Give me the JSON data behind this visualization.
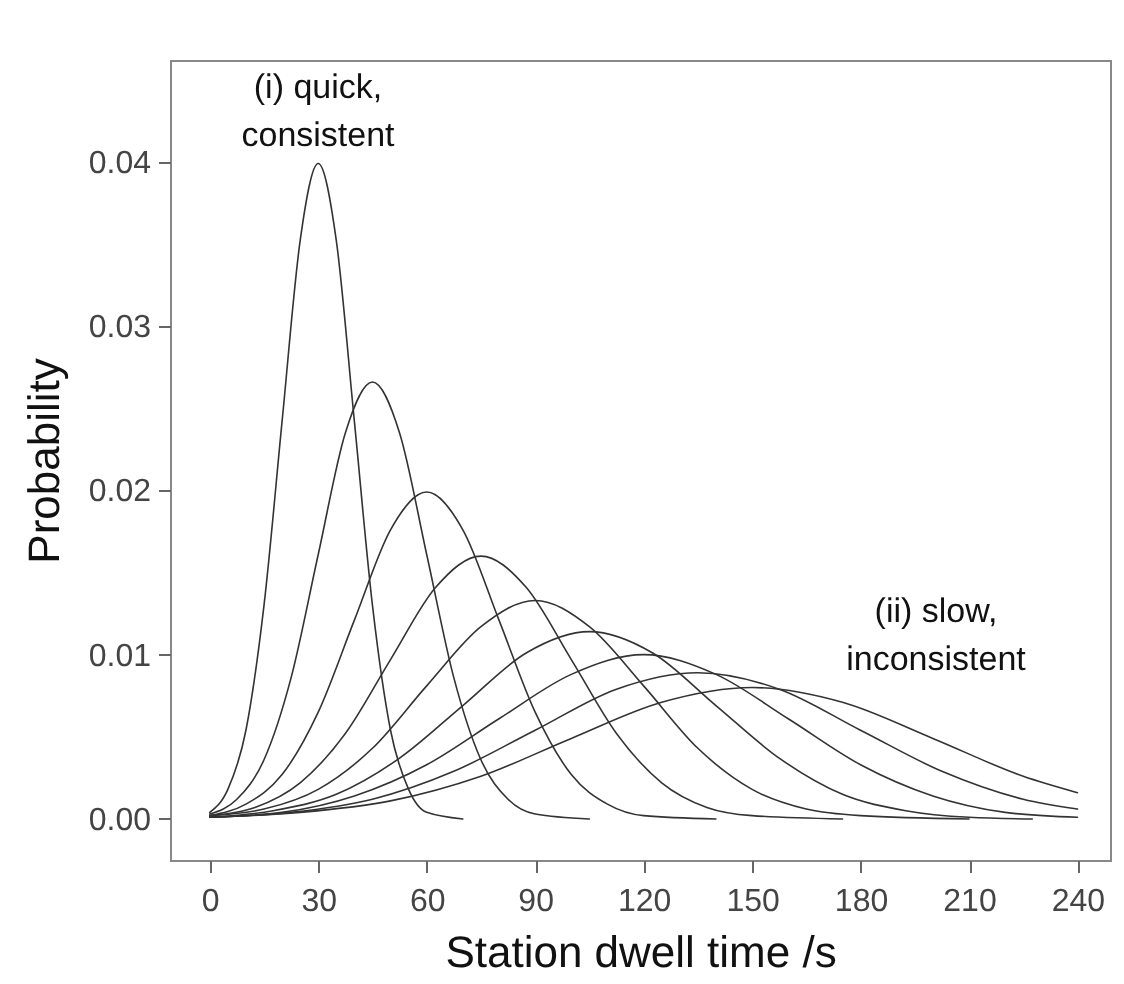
{
  "chart_data": {
    "type": "line",
    "xlabel": "Station dwell time /s",
    "ylabel": "Probability",
    "xlim": [
      -11,
      249
    ],
    "xticks": [
      0,
      30,
      60,
      90,
      120,
      150,
      180,
      210,
      240
    ],
    "ylim": [
      -0.0025,
      0.0462
    ],
    "yticks": [
      {
        "value": 0,
        "label": "0.00"
      },
      {
        "value": 0.01,
        "label": "0.01"
      },
      {
        "value": 0.02,
        "label": "0.02"
      },
      {
        "value": 0.03,
        "label": "0.03"
      },
      {
        "value": 0.04,
        "label": "0.04"
      }
    ],
    "annotations": [
      "(i) quick,\nconsistent",
      "(ii) slow,\ninconsistent"
    ],
    "series": [
      {
        "color": "#333333",
        "x": [
          0,
          5,
          10,
          15,
          20,
          25,
          30,
          35,
          40,
          45,
          50,
          55,
          60,
          70
        ],
        "values": [
          0.0004,
          0.0018,
          0.0054,
          0.013,
          0.0242,
          0.0352,
          0.0399,
          0.0352,
          0.0242,
          0.013,
          0.0054,
          0.0018,
          0.0004,
          0
        ]
      },
      {
        "color": "#333333",
        "x": [
          0,
          7.5,
          15,
          22.5,
          30,
          37.5,
          45,
          52.5,
          60,
          67.5,
          75,
          82.5,
          90,
          105
        ],
        "values": [
          0.0003,
          0.0012,
          0.0036,
          0.0086,
          0.0161,
          0.0235,
          0.0266,
          0.0235,
          0.0161,
          0.0086,
          0.0036,
          0.0012,
          0.0003,
          0
        ]
      },
      {
        "color": "#333333",
        "x": [
          0,
          10,
          20,
          30,
          40,
          50,
          60,
          70,
          80,
          90,
          100,
          110,
          120,
          140
        ],
        "values": [
          0.0002,
          0.0009,
          0.0027,
          0.0065,
          0.0121,
          0.0176,
          0.0199,
          0.0176,
          0.0121,
          0.0065,
          0.0027,
          0.0009,
          0.0002,
          0
        ]
      },
      {
        "color": "#333333",
        "x": [
          0,
          12.5,
          25,
          37.5,
          50,
          62.5,
          75,
          87.5,
          100,
          112.5,
          125,
          137.5,
          150,
          175
        ],
        "values": [
          0.0002,
          0.0007,
          0.0022,
          0.0052,
          0.0097,
          0.0141,
          0.016,
          0.0141,
          0.0097,
          0.0052,
          0.0022,
          0.0007,
          0.0002,
          0
        ]
      },
      {
        "color": "#333333",
        "x": [
          0,
          15,
          30,
          45,
          60,
          75,
          90,
          105,
          120,
          135,
          150,
          165,
          180,
          210
        ],
        "values": [
          0.0002,
          0.0006,
          0.0018,
          0.0043,
          0.0081,
          0.0117,
          0.0133,
          0.0117,
          0.0081,
          0.0043,
          0.0018,
          0.0006,
          0.0002,
          0
        ]
      },
      {
        "color": "#333333",
        "x": [
          0,
          17.5,
          35,
          52.5,
          70,
          87.5,
          105,
          122.5,
          140,
          157.5,
          175,
          192.5,
          210,
          227.5
        ],
        "values": [
          0.0001,
          0.0005,
          0.0015,
          0.0037,
          0.0069,
          0.0101,
          0.0114,
          0.0101,
          0.0069,
          0.0037,
          0.0015,
          0.0005,
          0.0001,
          0
        ]
      },
      {
        "color": "#333333",
        "x": [
          0,
          20,
          40,
          60,
          80,
          100,
          120,
          140,
          160,
          180,
          200,
          220,
          240
        ],
        "values": [
          0.0001,
          0.0004,
          0.0014,
          0.0033,
          0.0061,
          0.0088,
          0.01,
          0.0088,
          0.0061,
          0.0033,
          0.0014,
          0.0004,
          0.0001
        ]
      },
      {
        "color": "#333333",
        "x": [
          0,
          22.5,
          45,
          67.5,
          90,
          112.5,
          135,
          157.5,
          180,
          202.5,
          225,
          240
        ],
        "values": [
          0.0001,
          0.0004,
          0.0012,
          0.0029,
          0.0054,
          0.0079,
          0.0089,
          0.0079,
          0.0054,
          0.0029,
          0.0012,
          0.0006
        ]
      },
      {
        "color": "#333333",
        "x": [
          0,
          25,
          50,
          75,
          100,
          125,
          150,
          175,
          200,
          225,
          240
        ],
        "values": [
          0.0001,
          0.0004,
          0.0011,
          0.0026,
          0.0049,
          0.0071,
          0.008,
          0.0071,
          0.0049,
          0.0026,
          0.0016
        ]
      }
    ]
  }
}
